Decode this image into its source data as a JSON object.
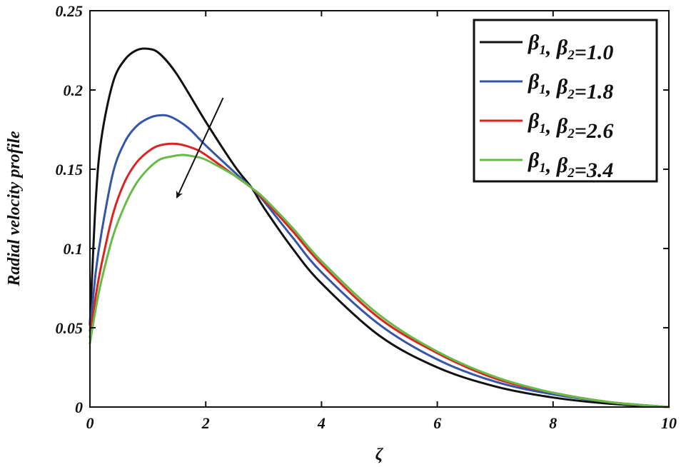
{
  "chart_data": {
    "type": "line",
    "title": "",
    "xlabel": "ζ",
    "ylabel": "Radial velocity profile",
    "xlim": [
      0,
      10
    ],
    "ylim": [
      0,
      0.25
    ],
    "x_ticks": [
      "0",
      "2",
      "4",
      "6",
      "8",
      "10"
    ],
    "y_ticks": [
      "0",
      "0.05",
      "0.1",
      "0.15",
      "0.2",
      "0.25"
    ],
    "grid": false,
    "legend_position": "top-right",
    "series": [
      {
        "name": "β1, β2=1.0",
        "color": "#111111",
        "x": [
          0,
          0.1,
          0.2,
          0.4,
          0.6,
          0.8,
          1.0,
          1.2,
          1.5,
          2.0,
          2.5,
          2.8,
          3.0,
          3.5,
          4.0,
          5.0,
          6.0,
          7.0,
          8.0,
          9.0,
          10.0
        ],
        "y": [
          0.052,
          0.13,
          0.17,
          0.205,
          0.219,
          0.225,
          0.226,
          0.223,
          0.21,
          0.18,
          0.152,
          0.138,
          0.126,
          0.1,
          0.078,
          0.045,
          0.025,
          0.013,
          0.006,
          0.002,
          0
        ]
      },
      {
        "name": "β1, β2=1.8",
        "color": "#3355aa",
        "x": [
          0,
          0.1,
          0.2,
          0.4,
          0.6,
          0.8,
          1.0,
          1.2,
          1.4,
          1.7,
          2.0,
          2.5,
          2.8,
          3.0,
          3.5,
          4.0,
          5.0,
          6.0,
          7.0,
          8.0,
          9.0,
          10.0
        ],
        "y": [
          0.048,
          0.085,
          0.11,
          0.148,
          0.167,
          0.177,
          0.182,
          0.184,
          0.183,
          0.176,
          0.165,
          0.148,
          0.138,
          0.13,
          0.107,
          0.085,
          0.052,
          0.03,
          0.016,
          0.008,
          0.003,
          0
        ]
      },
      {
        "name": "β1, β2=2.6",
        "color": "#dd2222",
        "x": [
          0,
          0.1,
          0.2,
          0.4,
          0.6,
          0.8,
          1.0,
          1.2,
          1.5,
          1.8,
          2.0,
          2.5,
          2.8,
          3.0,
          3.5,
          4.0,
          5.0,
          6.0,
          7.0,
          8.0,
          9.0,
          10.0
        ],
        "y": [
          0.044,
          0.07,
          0.09,
          0.122,
          0.142,
          0.154,
          0.161,
          0.165,
          0.166,
          0.163,
          0.159,
          0.146,
          0.138,
          0.131,
          0.111,
          0.09,
          0.056,
          0.034,
          0.018,
          0.009,
          0.003,
          0
        ]
      },
      {
        "name": "β1, β2=3.4",
        "color": "#66bb44",
        "x": [
          0,
          0.1,
          0.2,
          0.4,
          0.6,
          0.8,
          1.0,
          1.2,
          1.4,
          1.6,
          1.8,
          2.0,
          2.5,
          2.8,
          3.0,
          3.5,
          4.0,
          5.0,
          6.0,
          7.0,
          8.0,
          9.0,
          10.0
        ],
        "y": [
          0.04,
          0.062,
          0.08,
          0.108,
          0.127,
          0.141,
          0.15,
          0.156,
          0.158,
          0.159,
          0.158,
          0.156,
          0.146,
          0.138,
          0.132,
          0.113,
          0.092,
          0.058,
          0.035,
          0.019,
          0.009,
          0.003,
          0
        ]
      }
    ],
    "annotations": [
      {
        "type": "arrow",
        "from": [
          2.3,
          0.195
        ],
        "to": [
          1.5,
          0.132
        ]
      }
    ]
  }
}
